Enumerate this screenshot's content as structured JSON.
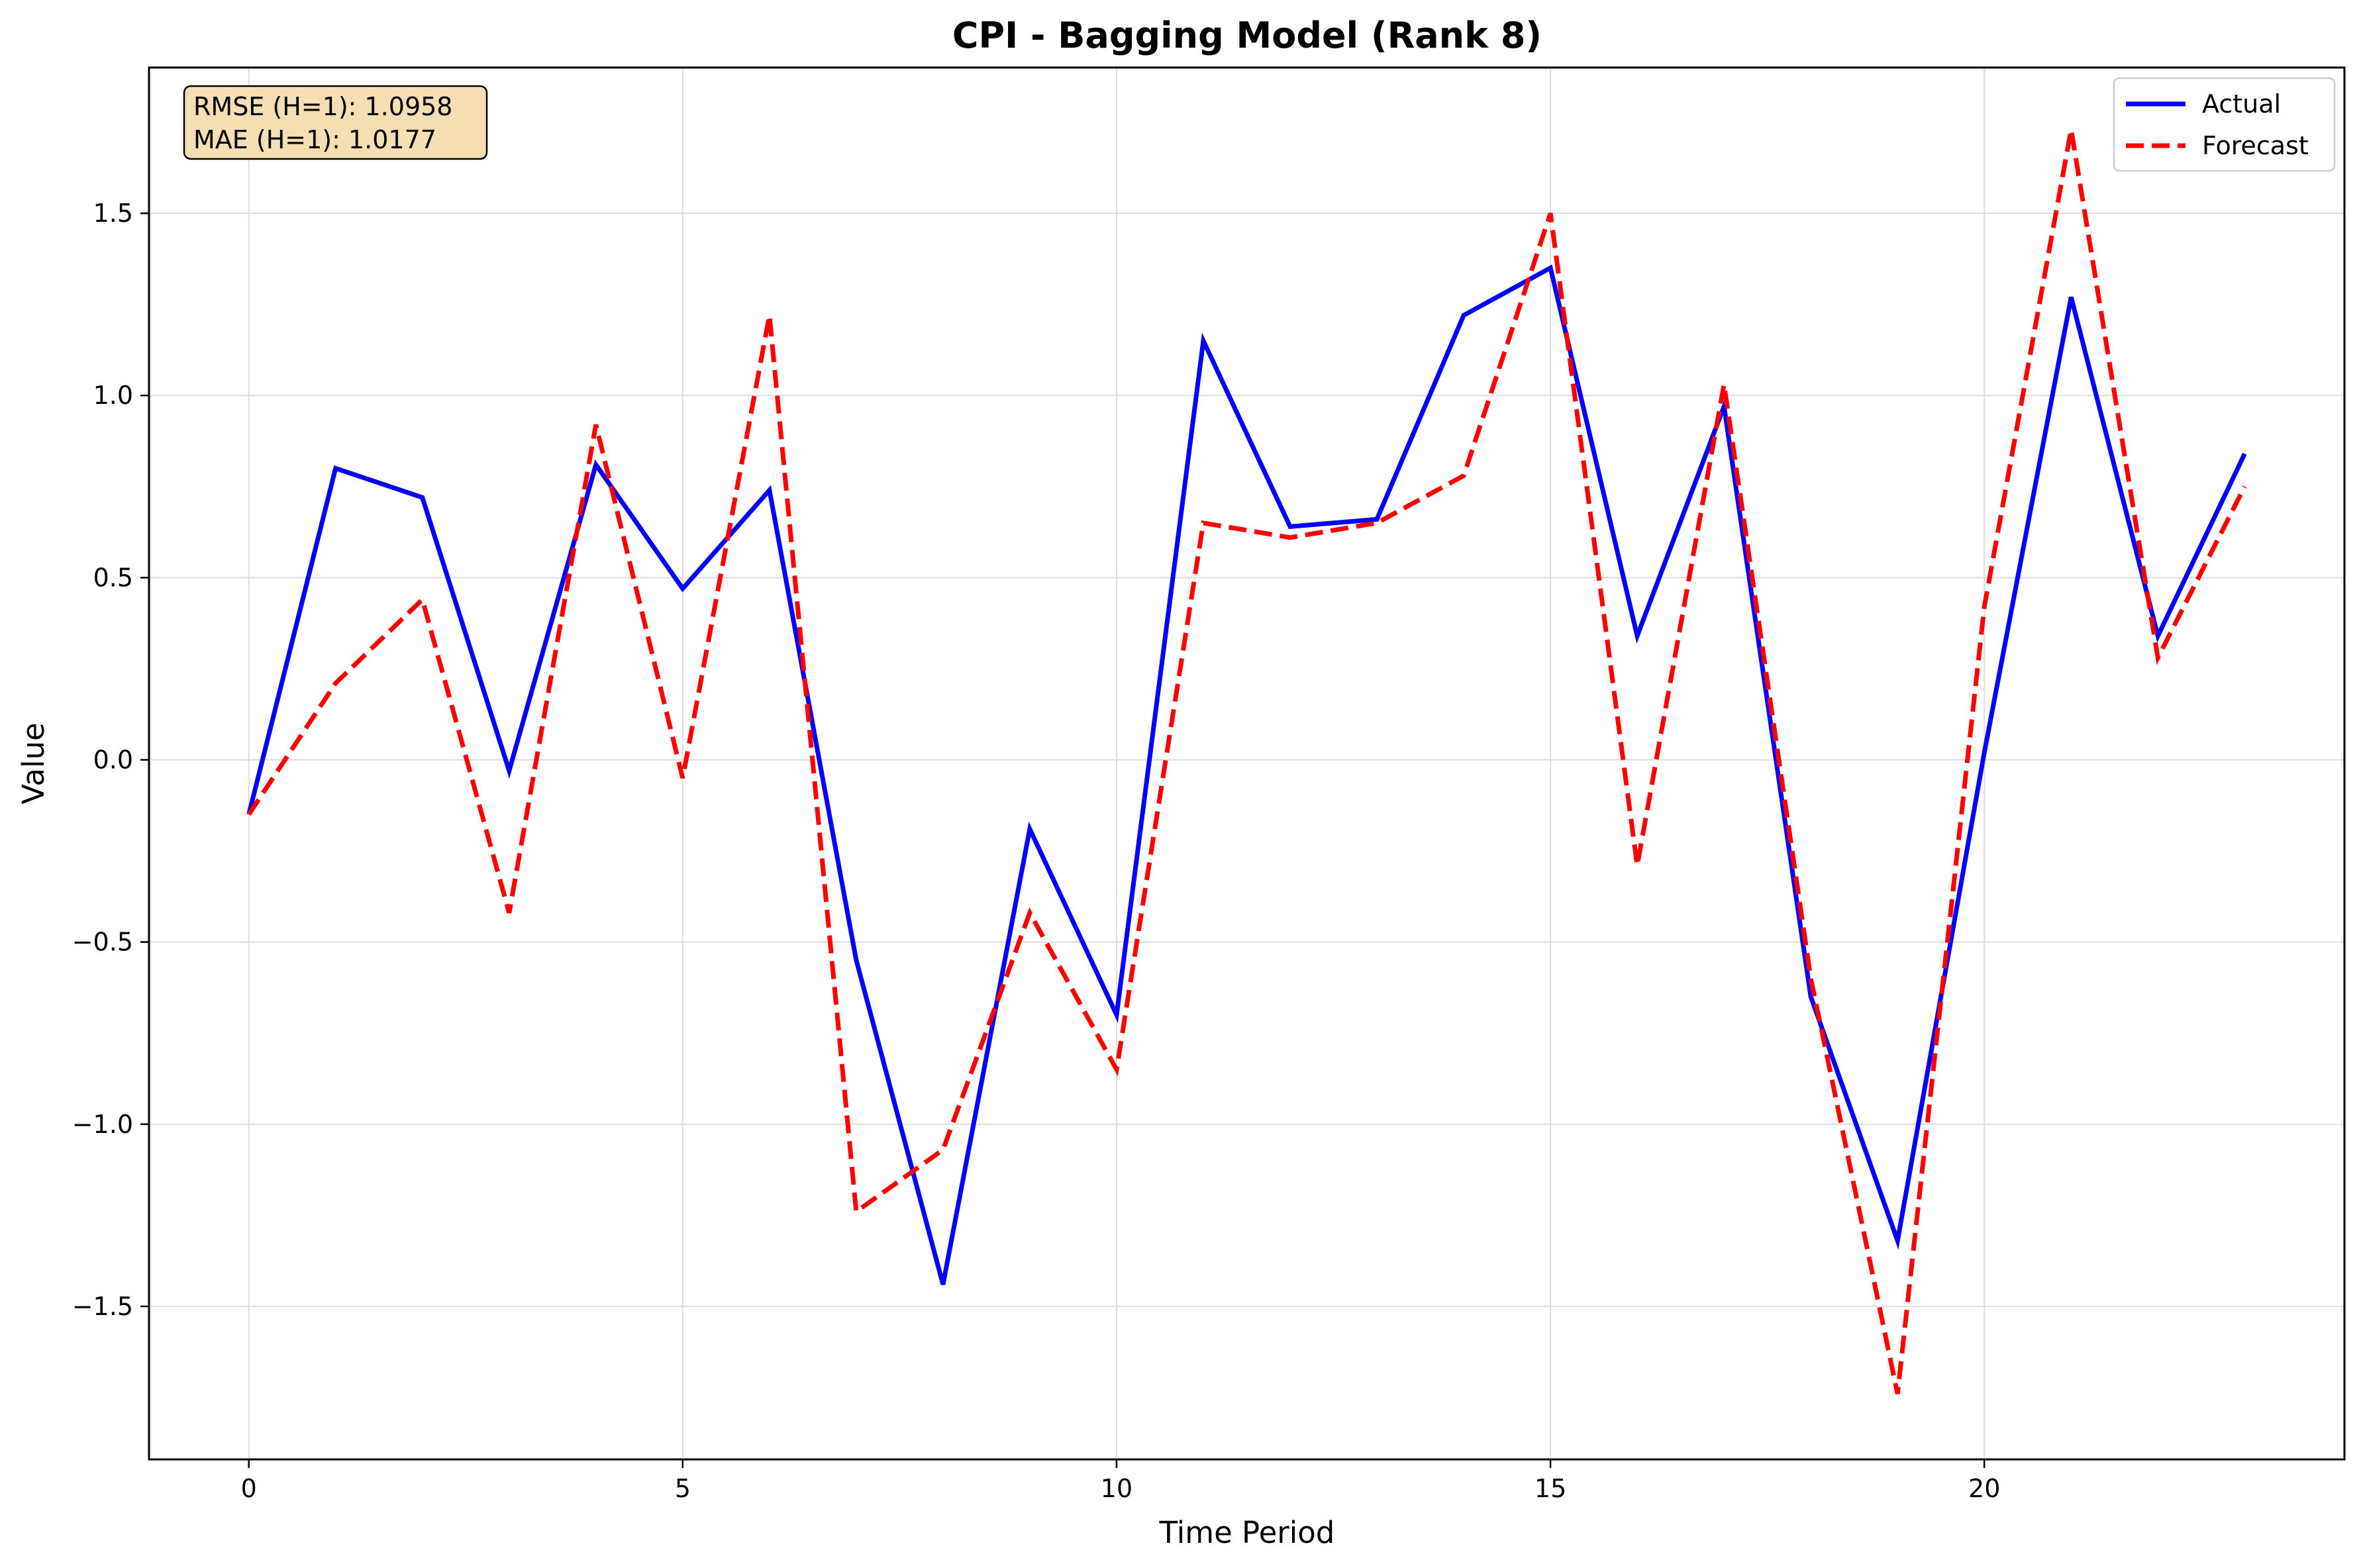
{
  "colors": {
    "actual": "#0000ff",
    "forecast": "#ff0000",
    "stats_box_fill": "#f5deb3",
    "grid": "#dddddd"
  },
  "stats": {
    "rmse": "RMSE (H=1): 1.0958",
    "mae": "MAE (H=1): 1.0177"
  },
  "chart_data": {
    "type": "line",
    "title": "CPI - Bagging Model (Rank 8)",
    "xlabel": "Time Period",
    "ylabel": "Value",
    "xlim": [
      -1.15,
      24.15
    ],
    "ylim": [
      -1.92,
      1.9
    ],
    "xticks": [
      0,
      5,
      10,
      15,
      20
    ],
    "yticks": [
      -1.5,
      -1.0,
      -0.5,
      0.0,
      0.5,
      1.0,
      1.5
    ],
    "xtick_labels": [
      "0",
      "5",
      "10",
      "15",
      "20"
    ],
    "ytick_labels": [
      "−1.5",
      "−1.0",
      "−0.5",
      "0.0",
      "0.5",
      "1.0",
      "1.5"
    ],
    "grid": true,
    "legend_position": "top-right",
    "x": [
      0,
      1,
      2,
      3,
      4,
      5,
      6,
      7,
      8,
      9,
      10,
      11,
      12,
      13,
      14,
      15,
      16,
      17,
      18,
      19,
      20,
      21,
      22,
      23
    ],
    "series": [
      {
        "name": "Actual",
        "style": "solid",
        "values": [
          -0.15,
          0.8,
          0.72,
          -0.03,
          0.81,
          0.47,
          0.74,
          -0.55,
          -1.44,
          -0.19,
          -0.7,
          1.15,
          0.64,
          0.66,
          1.22,
          1.35,
          0.34,
          0.97,
          -0.65,
          -1.32,
          0.02,
          1.27,
          0.34,
          0.84
        ]
      },
      {
        "name": "Forecast",
        "style": "dashed",
        "values": [
          -0.15,
          0.21,
          0.44,
          -0.42,
          0.92,
          -0.05,
          1.22,
          -1.24,
          -1.07,
          -0.42,
          -0.85,
          0.65,
          0.61,
          0.65,
          0.78,
          1.5,
          -0.29,
          1.03,
          -0.6,
          -1.74,
          0.42,
          1.73,
          0.28,
          0.75
        ]
      }
    ]
  }
}
